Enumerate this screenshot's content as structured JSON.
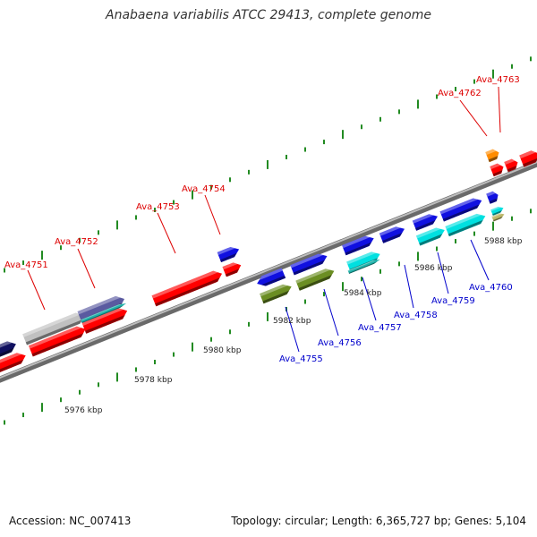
{
  "title": "Anabaena variabilis ATCC 29413, complete genome",
  "footer": {
    "accession": "Accession: NC_007413",
    "summary": "Topology: circular; Length: 6,365,727 bp; Genes: 5,104"
  },
  "scale_labels": [
    "5976 kbp",
    "5978 kbp",
    "5980 kbp",
    "5982 kbp",
    "5984 kbp",
    "5986 kbp",
    "5988 kbp"
  ],
  "gene_labels_top": [
    "Ava_4751",
    "Ava_4752",
    "Ava_4753",
    "Ava_4754",
    "Ava_4762",
    "Ava_4763"
  ],
  "gene_labels_bottom": [
    "Ava_4755",
    "Ava_4756",
    "Ava_4757",
    "Ava_4758",
    "Ava_4759",
    "Ava_4760"
  ],
  "colors": {
    "top_label": "#dd0000",
    "bottom_label": "#0000cc",
    "red_cds": "#ff0000",
    "blue_cds": "#1010e0",
    "navy_cds": "#101060",
    "gray_cds": "#c0c0c0",
    "olive_cds": "#6b8e23",
    "cyan_cds": "#00e0e0",
    "teal_cds": "#20b2aa",
    "orange_cds": "#ff8c00",
    "tan_cds": "#bdb76b",
    "backbone": "#909090",
    "tick": "#228b22"
  }
}
